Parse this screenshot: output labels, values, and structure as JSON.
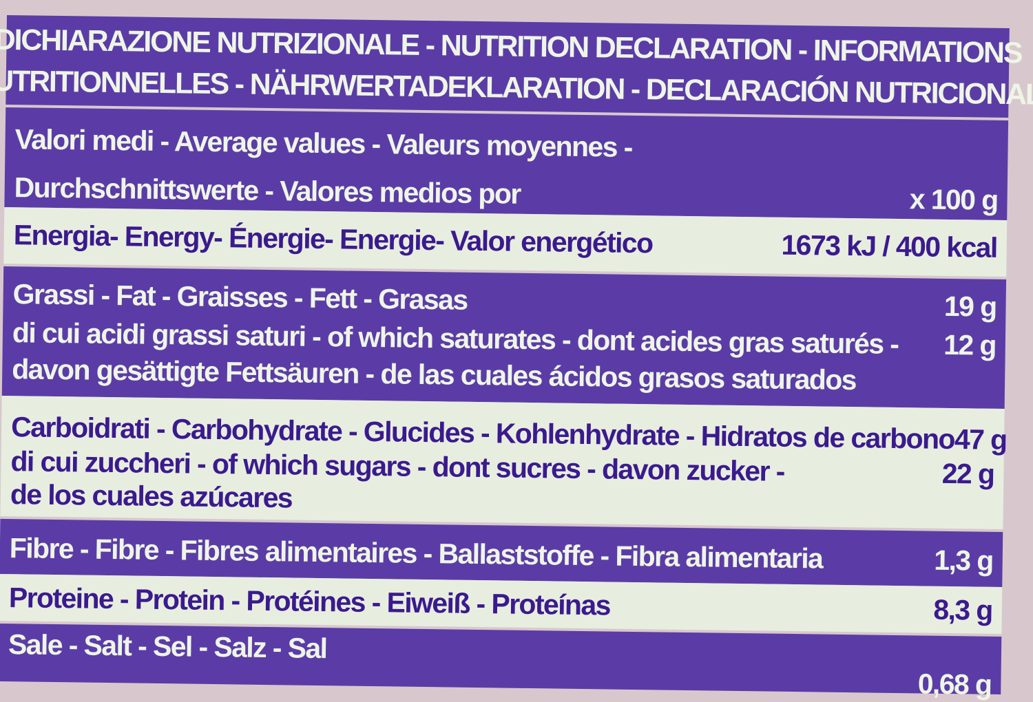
{
  "header": {
    "line1": "DICHIARAZIONE NUTRIZIONALE - NUTRITION DECLARATION - INFORMATIONS",
    "line2": "NUTRITIONNELLES - NÄHRWERTADEKLARATION - DECLARACIÓN NUTRICIONAL"
  },
  "average": {
    "line1": "Valori medi - Average values - Valeurs moyennes -",
    "line2": "Durchschnittswerte - Valores medios por",
    "per": "x 100 g"
  },
  "energy": {
    "label": "Energia- Energy- Énergie- Energie- Valor energético",
    "value": "1673 kJ / 400 kcal"
  },
  "fat": {
    "label": "Grassi - Fat - Graisses - Fett - Grasas",
    "value": "19 g",
    "sat_line1": "di cui acidi grassi saturi - of which saturates - dont acides gras saturés -",
    "sat_value": "12 g",
    "sat_line2": "davon gesättigte Fettsäuren - de las cuales ácidos grasos saturados"
  },
  "carbs": {
    "label": "Carboidrati - Carbohydrate - Glucides - Kohlenhydrate - Hidratos de carbono",
    "value": "47 g",
    "sug_line1": "di cui zuccheri - of which sugars - dont sucres - davon zucker -",
    "sug_value": "22 g",
    "sug_line2": "de los cuales azúcares"
  },
  "fibre": {
    "label": "Fibre - Fibre - Fibres alimentaires - Ballaststoffe - Fibra alimentaria",
    "value": "1,3 g"
  },
  "protein": {
    "label": "Proteine - Protein - Protéines - Eiweiß - Proteínas",
    "value": "8,3 g"
  },
  "salt": {
    "label": "Sale - Salt - Sel - Salz - Sal",
    "value": "0,68 g"
  },
  "colors": {
    "purple": "#5b3ca6",
    "light": "#e7eedf",
    "text_purple": "#3b1a8e",
    "text_light": "#eef5e6"
  }
}
